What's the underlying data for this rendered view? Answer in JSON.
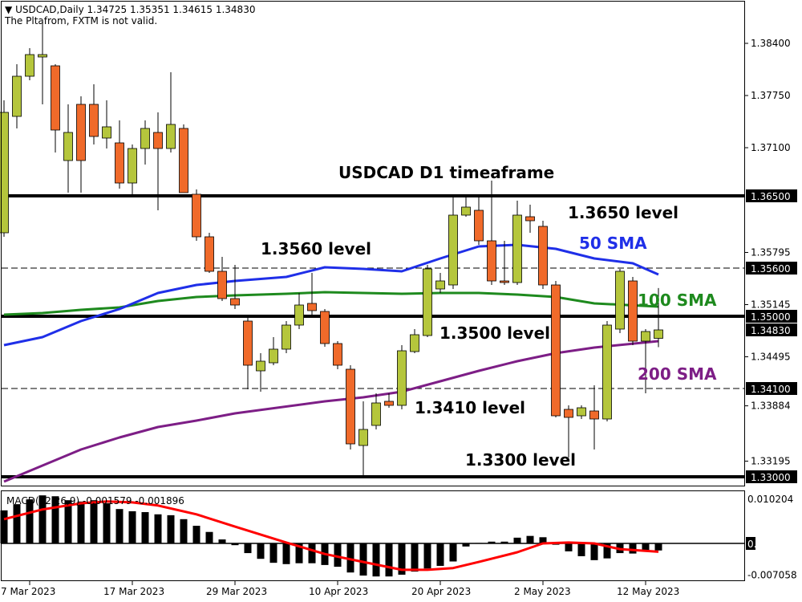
{
  "header": {
    "symbol_line": "USDCAD,Daily  1.34725 1.35351 1.34615 1.34830",
    "warning": "The Pltafrom, FXTM is not valid."
  },
  "colors": {
    "bull": "#b5c63c",
    "bear": "#f06a2a",
    "sma50": "#1f2fe8",
    "sma100": "#1e8a1e",
    "sma200": "#7d1e86",
    "signal": "#ff0000"
  },
  "price_axis": {
    "ticks": [
      "1.38400",
      "1.37750",
      "1.37100",
      "1.35795",
      "1.35145",
      "1.34495",
      "1.33884",
      "1.33195"
    ],
    "tick_values": [
      1.384,
      1.3775,
      1.371,
      1.35795,
      1.35145,
      1.34495,
      1.33884,
      1.33195
    ],
    "boxed": [
      "1.36500",
      "1.35600",
      "1.35000",
      "1.34830",
      "1.34100",
      "1.33000"
    ],
    "boxed_values": [
      1.365,
      1.356,
      1.35,
      1.3483,
      1.341,
      1.33
    ]
  },
  "levels": [
    {
      "value": 1.365,
      "style": "solid"
    },
    {
      "value": 1.356,
      "style": "dashed"
    },
    {
      "value": 1.35,
      "style": "solid"
    },
    {
      "value": 1.341,
      "style": "dashed"
    },
    {
      "value": 1.33,
      "style": "solid"
    }
  ],
  "annotations": {
    "title": "USDCAD D1 timeaframe",
    "l1365": "1.3650 level",
    "l1356": "1.3560 level",
    "l1350": "1.3500 level",
    "l1341": "1.3410 level",
    "l1330": "1.3300 level",
    "sma50": "50 SMA",
    "sma100": "100 SMA",
    "sma200": "200 SMA"
  },
  "date_axis": [
    {
      "label": "7 Mar 2023",
      "bar": 2
    },
    {
      "label": "17 Mar 2023",
      "bar": 10
    },
    {
      "label": "29 Mar 2023",
      "bar": 18
    },
    {
      "label": "10 Apr 2023",
      "bar": 26
    },
    {
      "label": "20 Apr 2023",
      "bar": 34
    },
    {
      "label": "2 May 2023",
      "bar": 42
    },
    {
      "label": "12 May 2023",
      "bar": 50
    }
  ],
  "candles_ohlc": [
    [
      1.3604,
      1.3769,
      1.3599,
      1.3754
    ],
    [
      1.3749,
      1.3814,
      1.3734,
      1.3799
    ],
    [
      1.3799,
      1.3834,
      1.3794,
      1.3826
    ],
    [
      1.3823,
      1.3864,
      1.3764,
      1.3826
    ],
    [
      1.3812,
      1.3814,
      1.3704,
      1.3732
    ],
    [
      1.3694,
      1.3764,
      1.3654,
      1.3729
    ],
    [
      1.3764,
      1.3774,
      1.3654,
      1.3694
    ],
    [
      1.3764,
      1.3789,
      1.3714,
      1.3724
    ],
    [
      1.3722,
      1.3769,
      1.3709,
      1.3736
    ],
    [
      1.3716,
      1.3744,
      1.3659,
      1.3666
    ],
    [
      1.3666,
      1.3714,
      1.3649,
      1.3709
    ],
    [
      1.3709,
      1.3744,
      1.3689,
      1.3734
    ],
    [
      1.3729,
      1.3754,
      1.3632,
      1.3709
    ],
    [
      1.3709,
      1.3804,
      1.3704,
      1.3739
    ],
    [
      1.3734,
      1.3739,
      1.3654,
      1.3654
    ],
    [
      1.3652,
      1.3658,
      1.3594,
      1.3599
    ],
    [
      1.3599,
      1.3604,
      1.3554,
      1.3556
    ],
    [
      1.3556,
      1.3574,
      1.3519,
      1.3522
    ],
    [
      1.3522,
      1.3564,
      1.3509,
      1.3514
    ],
    [
      1.3494,
      1.3499,
      1.3409,
      1.3439
    ],
    [
      1.3432,
      1.3454,
      1.3406,
      1.3444
    ],
    [
      1.3442,
      1.3474,
      1.3439,
      1.3459
    ],
    [
      1.3459,
      1.3494,
      1.3454,
      1.3489
    ],
    [
      1.3489,
      1.3529,
      1.3484,
      1.3514
    ],
    [
      1.3516,
      1.3554,
      1.3499,
      1.3507
    ],
    [
      1.3506,
      1.3509,
      1.3462,
      1.3466
    ],
    [
      1.3466,
      1.3469,
      1.3434,
      1.3439
    ],
    [
      1.3434,
      1.3439,
      1.3334,
      1.3341
    ],
    [
      1.3339,
      1.3394,
      1.3302,
      1.3359
    ],
    [
      1.3364,
      1.3404,
      1.3359,
      1.3392
    ],
    [
      1.3394,
      1.3404,
      1.3386,
      1.3389
    ],
    [
      1.3389,
      1.3464,
      1.3384,
      1.3457
    ],
    [
      1.3456,
      1.3484,
      1.3454,
      1.3477
    ],
    [
      1.3476,
      1.3564,
      1.3474,
      1.3559
    ],
    [
      1.3534,
      1.3554,
      1.3529,
      1.3544
    ],
    [
      1.3539,
      1.3649,
      1.3534,
      1.3626
    ],
    [
      1.3626,
      1.3649,
      1.3624,
      1.3636
    ],
    [
      1.3632,
      1.3649,
      1.3589,
      1.3594
    ],
    [
      1.3594,
      1.3669,
      1.3539,
      1.3544
    ],
    [
      1.3544,
      1.3594,
      1.3539,
      1.3542
    ],
    [
      1.3542,
      1.3644,
      1.3539,
      1.3626
    ],
    [
      1.3624,
      1.3639,
      1.3604,
      1.3619
    ],
    [
      1.3612,
      1.3619,
      1.3534,
      1.3539
    ],
    [
      1.3539,
      1.3544,
      1.3374,
      1.3376
    ],
    [
      1.3384,
      1.3389,
      1.3324,
      1.3374
    ],
    [
      1.3376,
      1.3389,
      1.3372,
      1.3386
    ],
    [
      1.3382,
      1.3414,
      1.3334,
      1.3372
    ],
    [
      1.3372,
      1.3494,
      1.3369,
      1.3489
    ],
    [
      1.3484,
      1.3559,
      1.3479,
      1.3556
    ],
    [
      1.3544,
      1.3549,
      1.3464,
      1.3469
    ],
    [
      1.3469,
      1.3484,
      1.3404,
      1.3481
    ],
    [
      1.34725,
      1.35351,
      1.34615,
      1.3483
    ]
  ],
  "sma50": [
    [
      0,
      1.3464
    ],
    [
      3,
      1.3474
    ],
    [
      6,
      1.3494
    ],
    [
      9,
      1.3509
    ],
    [
      12,
      1.3529
    ],
    [
      15,
      1.3539
    ],
    [
      18,
      1.3544
    ],
    [
      22,
      1.3549
    ],
    [
      25,
      1.3561
    ],
    [
      28,
      1.3559
    ],
    [
      31,
      1.3556
    ],
    [
      34,
      1.3572
    ],
    [
      37,
      1.3587
    ],
    [
      40,
      1.3589
    ],
    [
      43,
      1.3584
    ],
    [
      46,
      1.3572
    ],
    [
      49,
      1.3566
    ],
    [
      51,
      1.3552
    ]
  ],
  "sma100": [
    [
      0,
      1.3502
    ],
    [
      3,
      1.3504
    ],
    [
      6,
      1.3508
    ],
    [
      9,
      1.3511
    ],
    [
      12,
      1.3519
    ],
    [
      15,
      1.3524
    ],
    [
      18,
      1.3526
    ],
    [
      22,
      1.3528
    ],
    [
      25,
      1.353
    ],
    [
      28,
      1.3529
    ],
    [
      31,
      1.3528
    ],
    [
      34,
      1.3529
    ],
    [
      37,
      1.3529
    ],
    [
      40,
      1.3527
    ],
    [
      43,
      1.3524
    ],
    [
      46,
      1.3516
    ],
    [
      51,
      1.3512
    ]
  ],
  "sma200": [
    [
      0,
      1.3294
    ],
    [
      3,
      1.3314
    ],
    [
      6,
      1.3334
    ],
    [
      9,
      1.3349
    ],
    [
      12,
      1.3362
    ],
    [
      15,
      1.337
    ],
    [
      18,
      1.3379
    ],
    [
      25,
      1.3394
    ],
    [
      28,
      1.3399
    ],
    [
      31,
      1.3406
    ],
    [
      34,
      1.3419
    ],
    [
      37,
      1.3432
    ],
    [
      40,
      1.3444
    ],
    [
      43,
      1.3454
    ],
    [
      46,
      1.3461
    ],
    [
      51,
      1.3469
    ]
  ],
  "macd": {
    "label": "MACD(12,26,9) -0.001579 -0.001896",
    "axis_ticks": [
      "0.010204",
      "0.00",
      "-0.007058"
    ],
    "axis_values": [
      0.010204,
      0,
      -0.007058
    ],
    "histogram": [
      0.0075,
      0.0089,
      0.01,
      0.0109,
      0.0107,
      0.0098,
      0.0095,
      0.0098,
      0.0091,
      0.0078,
      0.0073,
      0.0071,
      0.0066,
      0.0064,
      0.0055,
      0.004,
      0.0026,
      0.0009,
      -0.0004,
      -0.0022,
      -0.0035,
      -0.0044,
      -0.0047,
      -0.0045,
      -0.0045,
      -0.0049,
      -0.0053,
      -0.0066,
      -0.0073,
      -0.0075,
      -0.0075,
      -0.0071,
      -0.0064,
      -0.0057,
      -0.0051,
      -0.0041,
      -0.0007,
      0.0001,
      0.0004,
      0.0004,
      0.0013,
      0.0017,
      0.0014,
      -0.0003,
      -0.0018,
      -0.0029,
      -0.0038,
      -0.0034,
      -0.0022,
      -0.0023,
      -0.0017,
      -0.0016
    ],
    "signal": [
      [
        0,
        0.0055
      ],
      [
        3,
        0.0077
      ],
      [
        6,
        0.0091
      ],
      [
        8,
        0.0095
      ],
      [
        10,
        0.0093
      ],
      [
        12,
        0.0086
      ],
      [
        15,
        0.0066
      ],
      [
        18,
        0.0038
      ],
      [
        22,
        0.0002
      ],
      [
        25,
        -0.0024
      ],
      [
        28,
        -0.0042
      ],
      [
        31,
        -0.006
      ],
      [
        33,
        -0.006
      ],
      [
        35,
        -0.0056
      ],
      [
        37,
        -0.0042
      ],
      [
        40,
        -0.002
      ],
      [
        42,
        0.0
      ],
      [
        44,
        0.0002
      ],
      [
        46,
        0.0
      ],
      [
        48,
        -0.0013
      ],
      [
        51,
        -0.0019
      ]
    ]
  }
}
